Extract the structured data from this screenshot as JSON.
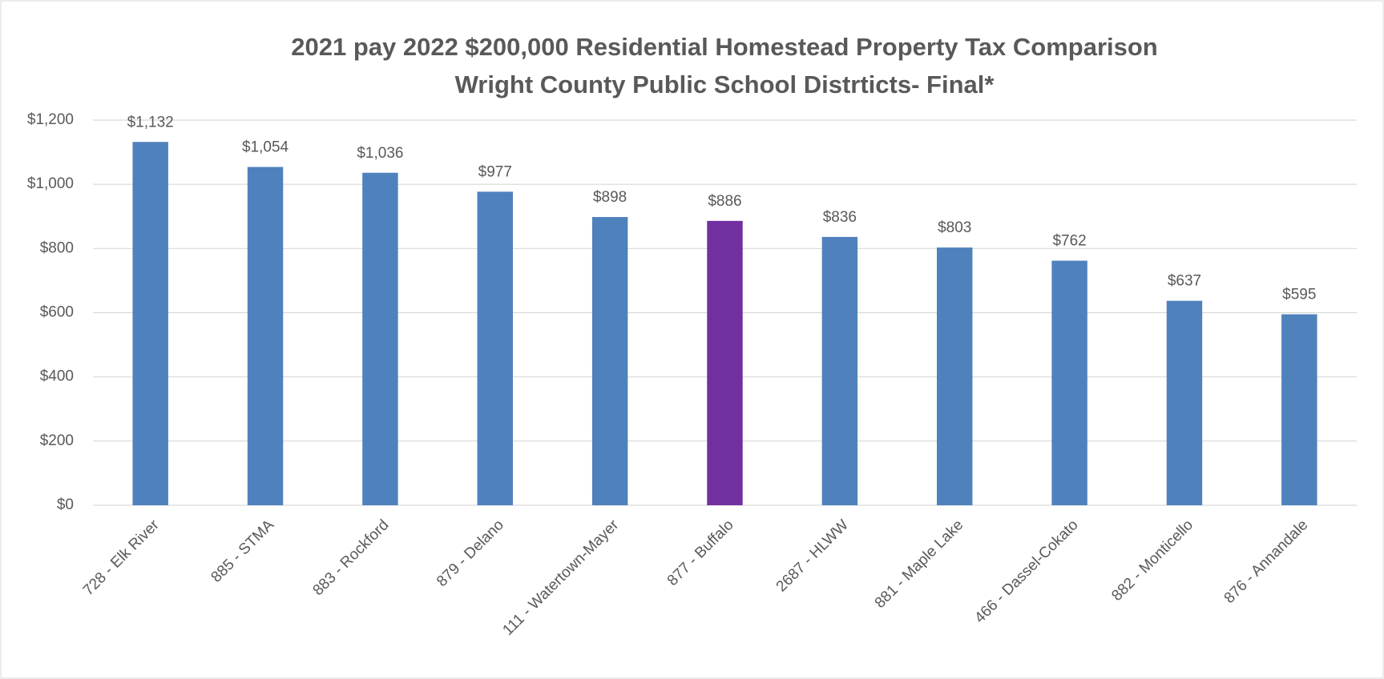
{
  "chart_data": {
    "type": "bar",
    "title": "2021 pay 2022 $200,000 Residential Homestead Property Tax Comparison",
    "subtitle": "Wright County Public School Distrticts- Final*",
    "categories": [
      "728 - Elk River",
      "885  -  STMA",
      "883  -  Rockford",
      "879  -  Delano",
      "111 - Watertown-Mayer",
      "877  -  Buffalo",
      "2687 - HLWW",
      "881  -  Maple Lake",
      "466 - Dassel-Cokato",
      "882  -  Monticello",
      "876 - Annandale"
    ],
    "values": [
      1132,
      1054,
      1036,
      977,
      898,
      886,
      836,
      803,
      762,
      637,
      595
    ],
    "value_labels": [
      "$1,132",
      "$1,054",
      "$1,036",
      "$977",
      "$898",
      "$886",
      "$836",
      "$803",
      "$762",
      "$637",
      "$595"
    ],
    "colors": [
      "#4f81bd",
      "#4f81bd",
      "#4f81bd",
      "#4f81bd",
      "#4f81bd",
      "#7030a0",
      "#4f81bd",
      "#4f81bd",
      "#4f81bd",
      "#4f81bd",
      "#4f81bd"
    ],
    "ylim": [
      0,
      1200
    ],
    "yticks": [
      {
        "value": 0,
        "label": "$0"
      },
      {
        "value": 200,
        "label": "$200"
      },
      {
        "value": 400,
        "label": "$400"
      },
      {
        "value": 600,
        "label": "$600"
      },
      {
        "value": 800,
        "label": "$800"
      },
      {
        "value": 1000,
        "label": "$1,000"
      },
      {
        "value": 1200,
        "label": "$1,200"
      }
    ],
    "grid": true
  }
}
